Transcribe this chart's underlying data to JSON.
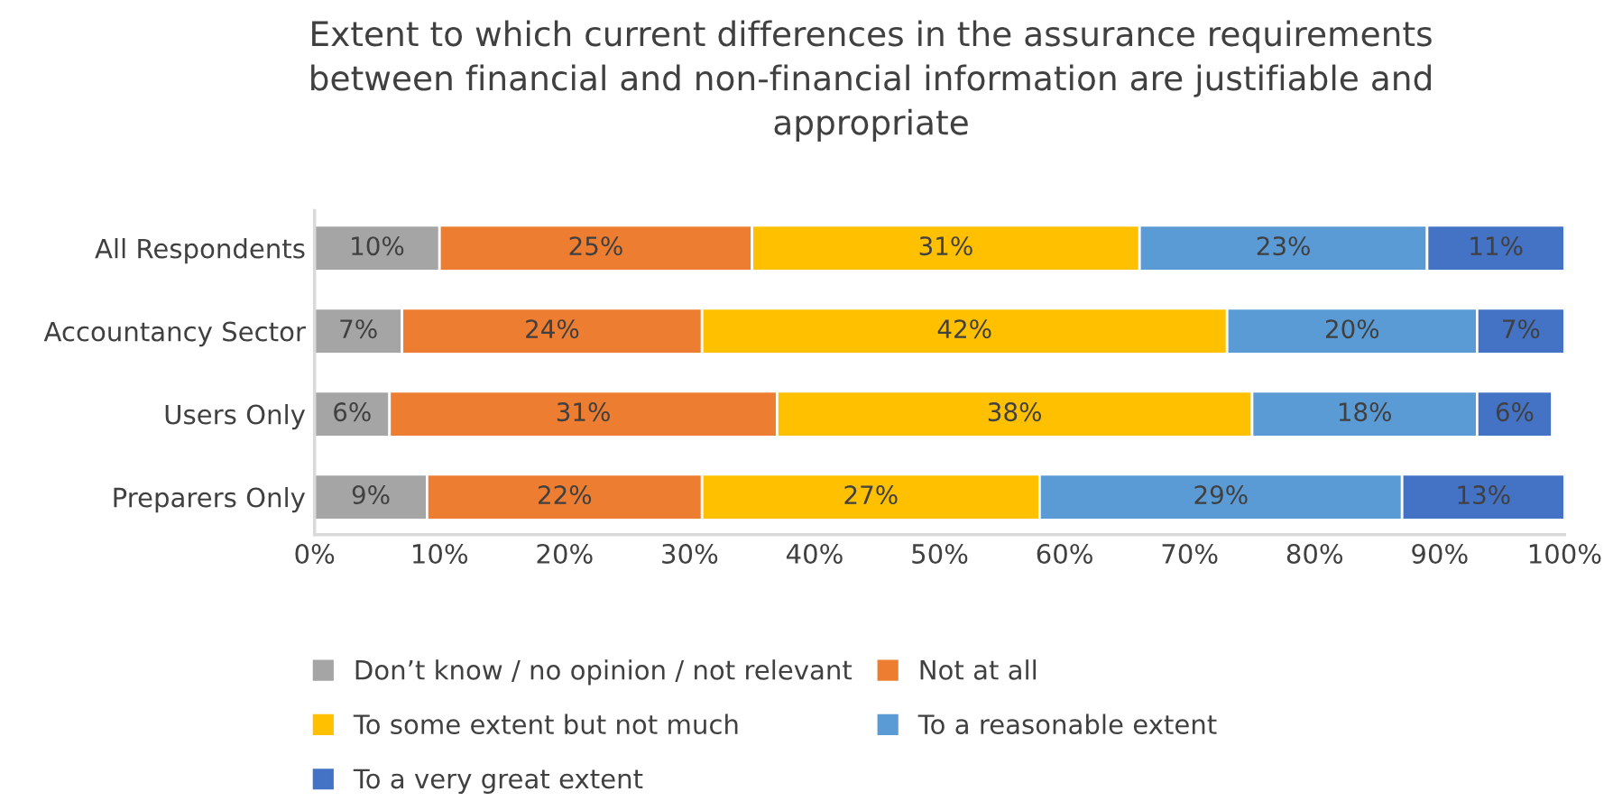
{
  "chart_data": {
    "type": "bar",
    "orientation": "horizontal",
    "stacked": true,
    "title": "Extent to which current differences in the assurance requirements\nbetween financial and non-financial information are justifiable and\nappropriate",
    "categories": [
      "All Respondents",
      "Accountancy Sector",
      "Users Only",
      "Preparers Only"
    ],
    "series": [
      {
        "name": "Don’t know / no opinion / not relevant",
        "color": "#a5a5a5",
        "values": [
          10,
          7,
          6,
          9
        ],
        "value_labels": [
          "10%",
          "7%",
          "6%",
          "9%"
        ]
      },
      {
        "name": "Not at all",
        "color": "#ed7d31",
        "values": [
          25,
          24,
          31,
          22
        ],
        "value_labels": [
          "25%",
          "24%",
          "31%",
          "22%"
        ]
      },
      {
        "name": "To some extent but not much",
        "color": "#ffc000",
        "values": [
          31,
          42,
          38,
          27
        ],
        "value_labels": [
          "31%",
          "42%",
          "38%",
          "27%"
        ]
      },
      {
        "name": "To a reasonable extent",
        "color": "#5b9bd5",
        "values": [
          23,
          20,
          18,
          29
        ],
        "value_labels": [
          "23%",
          "20%",
          "18%",
          "29%"
        ]
      },
      {
        "name": "To a very great extent",
        "color": "#4472c4",
        "values": [
          11,
          7,
          6,
          13
        ],
        "value_labels": [
          "11%",
          "7%",
          "6%",
          "13%"
        ]
      }
    ],
    "xlim": [
      0,
      100
    ],
    "xticks": [
      {
        "value": 0,
        "label": "0%"
      },
      {
        "value": 10,
        "label": "10%"
      },
      {
        "value": 20,
        "label": "20%"
      },
      {
        "value": 30,
        "label": "30%"
      },
      {
        "value": 40,
        "label": "40%"
      },
      {
        "value": 50,
        "label": "50%"
      },
      {
        "value": 60,
        "label": "60%"
      },
      {
        "value": 70,
        "label": "70%"
      },
      {
        "value": 80,
        "label": "80%"
      },
      {
        "value": 90,
        "label": "90%"
      },
      {
        "value": 100,
        "label": "100%"
      }
    ],
    "legend": "bottom",
    "grid": false
  }
}
